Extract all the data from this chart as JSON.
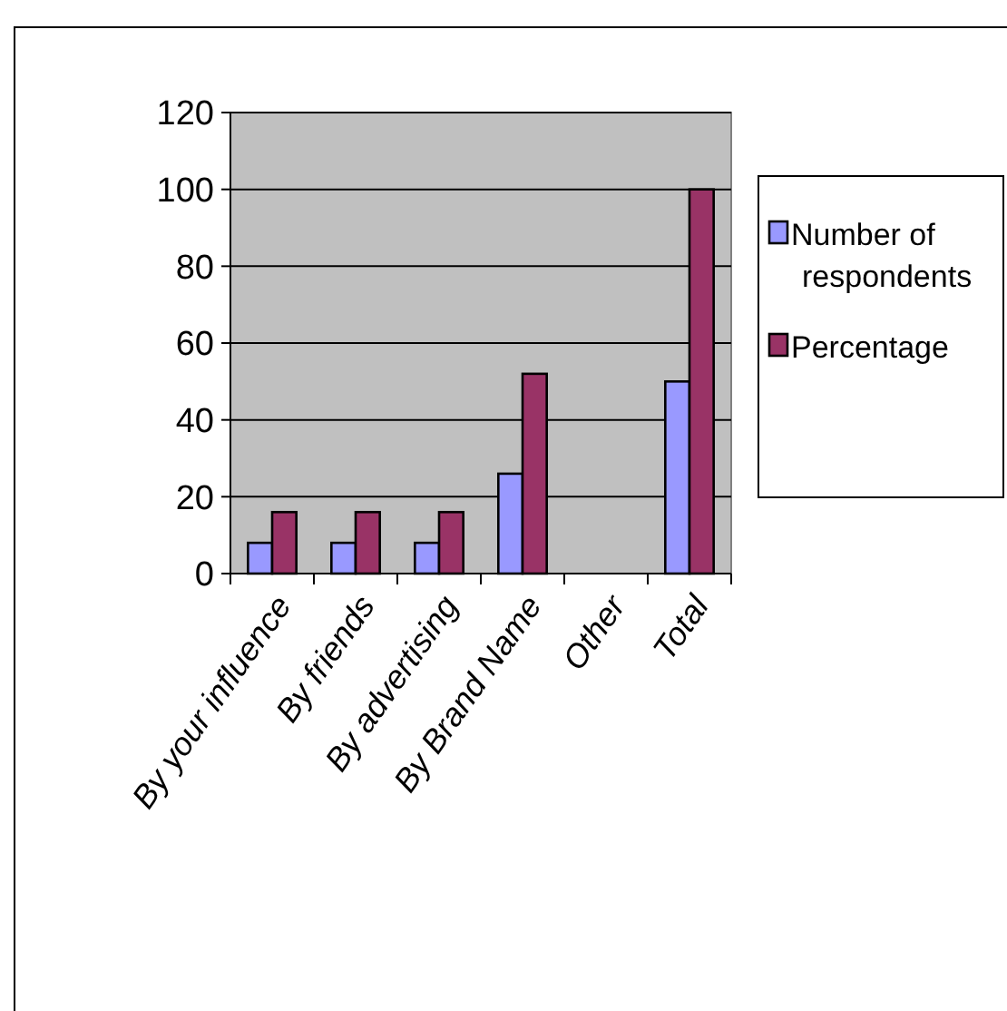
{
  "chart_data": {
    "type": "bar",
    "categories": [
      "By your influence",
      "By friends",
      "By advertising",
      "By Brand Name",
      "Other",
      "Total"
    ],
    "series": [
      {
        "name": "Number of respondents",
        "color": "#9999ff",
        "values": [
          8,
          8,
          8,
          26,
          0,
          50
        ]
      },
      {
        "name": "Percentage",
        "color": "#993366",
        "values": [
          16,
          16,
          16,
          52,
          0,
          100
        ]
      }
    ],
    "ylim": [
      0,
      120
    ],
    "yticks": [
      0,
      20,
      40,
      60,
      80,
      100,
      120
    ],
    "grid": "y",
    "legend": "right"
  }
}
